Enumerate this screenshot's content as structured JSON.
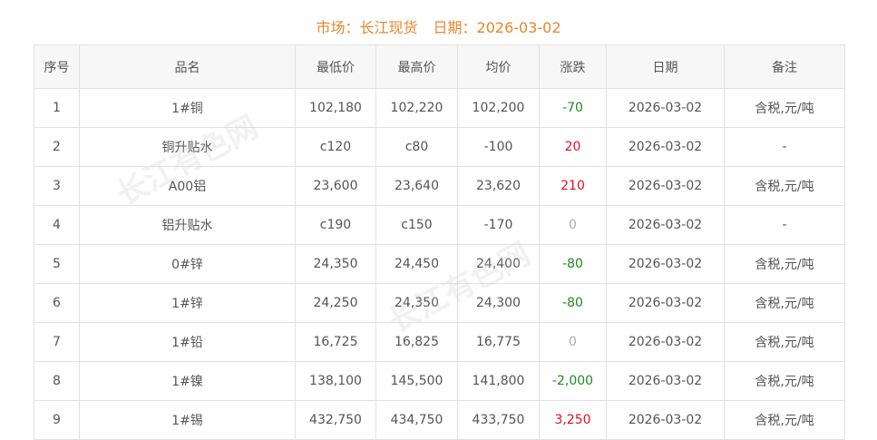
{
  "header": {
    "market_label": "市场：长江现货",
    "date_label": "日期：2026-03-02"
  },
  "table": {
    "columns": [
      "序号",
      "品名",
      "最低价",
      "最高价",
      "均价",
      "涨跌",
      "日期",
      "备注"
    ],
    "rows": [
      {
        "no": "1",
        "name": "1#铜",
        "low": "102,180",
        "high": "102,220",
        "avg": "102,200",
        "change": "-70",
        "dir": "down",
        "date": "2026-03-02",
        "note": "含税,元/吨"
      },
      {
        "no": "2",
        "name": "铜升贴水",
        "low": "c120",
        "high": "c80",
        "avg": "-100",
        "change": "20",
        "dir": "up",
        "date": "2026-03-02",
        "note": "-"
      },
      {
        "no": "3",
        "name": "A00铝",
        "low": "23,600",
        "high": "23,640",
        "avg": "23,620",
        "change": "210",
        "dir": "up",
        "date": "2026-03-02",
        "note": "含税,元/吨"
      },
      {
        "no": "4",
        "name": "铝升贴水",
        "low": "c190",
        "high": "c150",
        "avg": "-170",
        "change": "0",
        "dir": "flat",
        "date": "2026-03-02",
        "note": "-"
      },
      {
        "no": "5",
        "name": "0#锌",
        "low": "24,350",
        "high": "24,450",
        "avg": "24,400",
        "change": "-80",
        "dir": "down",
        "date": "2026-03-02",
        "note": "含税,元/吨"
      },
      {
        "no": "6",
        "name": "1#锌",
        "low": "24,250",
        "high": "24,350",
        "avg": "24,300",
        "change": "-80",
        "dir": "down",
        "date": "2026-03-02",
        "note": "含税,元/吨"
      },
      {
        "no": "7",
        "name": "1#铅",
        "low": "16,725",
        "high": "16,825",
        "avg": "16,775",
        "change": "0",
        "dir": "flat",
        "date": "2026-03-02",
        "note": "含税,元/吨"
      },
      {
        "no": "8",
        "name": "1#镍",
        "low": "138,100",
        "high": "145,500",
        "avg": "141,800",
        "change": "-2,000",
        "dir": "down",
        "date": "2026-03-02",
        "note": "含税,元/吨"
      },
      {
        "no": "9",
        "name": "1#锡",
        "low": "432,750",
        "high": "434,750",
        "avg": "433,750",
        "change": "3,250",
        "dir": "up",
        "date": "2026-03-02",
        "note": "含税,元/吨"
      }
    ]
  },
  "colors": {
    "title": "#e8862a",
    "up": "#e0101e",
    "down": "#1e8a1e",
    "flat": "#aaaaaa"
  },
  "watermark": "长江有色网®"
}
